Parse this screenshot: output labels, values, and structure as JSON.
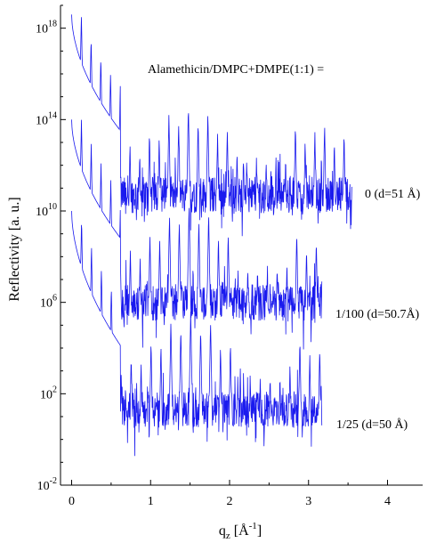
{
  "chart_data": {
    "type": "line",
    "title": "",
    "annotation": "Alamethicin/DMPC+DMPE(1:1) =",
    "xlabel": {
      "main": "q",
      "sub": "z",
      "unit_open": " [Å",
      "unit_sup": "-1",
      "unit_close": "]"
    },
    "ylabel": "Reflectivity [a. u.]",
    "xlim": [
      -0.05,
      4.65
    ],
    "ylog": true,
    "ylim_exp": [
      -2,
      19
    ],
    "x_ticks": [
      0,
      1,
      2,
      3,
      4
    ],
    "x_tick_labels": [
      "0",
      "1",
      "2",
      "3",
      "4"
    ],
    "y_ticks_exp": [
      -2,
      2,
      6,
      10,
      14,
      18
    ],
    "y_tick_labels": [
      {
        "base": "10",
        "exp": "-2"
      },
      {
        "base": "10",
        "exp": "2"
      },
      {
        "base": "10",
        "exp": "6"
      },
      {
        "base": "10",
        "exp": "10"
      },
      {
        "base": "10",
        "exp": "14"
      },
      {
        "base": "10",
        "exp": "18"
      }
    ],
    "grid": false,
    "line_color": "#1a1aee",
    "series": [
      {
        "name": "0  (d=51 Å)",
        "d_spacing": 51,
        "q_max": 3.55,
        "start_exp": 18.6,
        "floor_exp": 10.7,
        "peak_exp": 13.8
      },
      {
        "name": "1/100  (d=50.7Å)",
        "d_spacing": 50.7,
        "q_max": 3.17,
        "start_exp": 14.0,
        "floor_exp": 6.0,
        "peak_exp": 9.5
      },
      {
        "name": "1/25  (d=50 Å)",
        "d_spacing": 50,
        "q_max": 3.17,
        "start_exp": 10.0,
        "floor_exp": 1.3,
        "peak_exp": 4.8
      }
    ]
  }
}
